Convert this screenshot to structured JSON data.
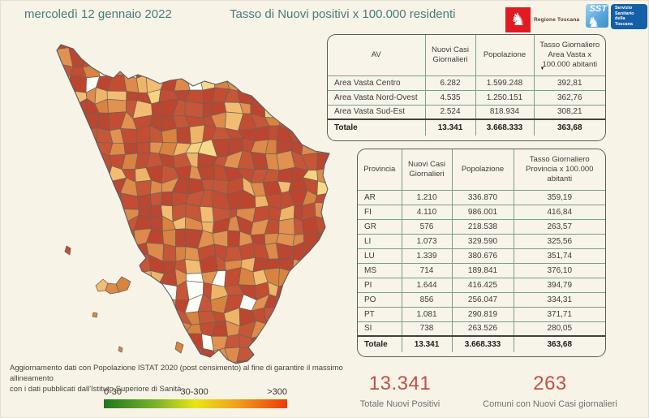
{
  "header": {
    "date": "mercoledì 12 gennaio 2022",
    "title": "Tasso di Nuovi positivi x 100.000 residenti"
  },
  "logos": {
    "regione": {
      "label": "Regione Toscana"
    },
    "sst": {
      "acronym": "SST",
      "lines": [
        "Servizio",
        "Sanitario",
        "della",
        "Toscana"
      ]
    }
  },
  "av_table": {
    "headers": [
      "AV",
      "Nuovi Casi Giornalieri",
      "Popolazione",
      "Tasso Giornaliero Area Vasta x 100.000 abitanti"
    ],
    "rows": [
      {
        "name": "Area Vasta Centro",
        "cases": "6.282",
        "population": "1.599.248",
        "rate": "392,81"
      },
      {
        "name": "Area Vasta Nord-Ovest",
        "cases": "4.535",
        "population": "1.250.151",
        "rate": "362,76"
      },
      {
        "name": "Area Vasta Sud-Est",
        "cases": "2.524",
        "population": "818.934",
        "rate": "308,21"
      }
    ],
    "total": {
      "name": "Totale",
      "cases": "13.341",
      "population": "3.668.333",
      "rate": "363,68"
    }
  },
  "province_table": {
    "headers": [
      "Provincia",
      "Nuovi Casi Giornalieri",
      "Popolazione",
      "Tasso Giornaliero Provincia x 100.000 abitanti"
    ],
    "rows": [
      {
        "name": "AR",
        "cases": "1.210",
        "population": "336.870",
        "rate": "359,19"
      },
      {
        "name": "FI",
        "cases": "4.110",
        "population": "986.001",
        "rate": "416,84"
      },
      {
        "name": "GR",
        "cases": "576",
        "population": "218.538",
        "rate": "263,57"
      },
      {
        "name": "LI",
        "cases": "1.073",
        "population": "329.590",
        "rate": "325,56"
      },
      {
        "name": "LU",
        "cases": "1.339",
        "population": "380.676",
        "rate": "351,74"
      },
      {
        "name": "MS",
        "cases": "714",
        "population": "189.841",
        "rate": "376,10"
      },
      {
        "name": "PI",
        "cases": "1.644",
        "population": "416.425",
        "rate": "394,79"
      },
      {
        "name": "PO",
        "cases": "856",
        "population": "256.047",
        "rate": "334,31"
      },
      {
        "name": "PT",
        "cases": "1.081",
        "population": "290.819",
        "rate": "371,71"
      },
      {
        "name": "SI",
        "cases": "738",
        "population": "263.526",
        "rate": "280,05"
      }
    ],
    "total": {
      "name": "Totale",
      "cases": "13.341",
      "population": "3.668.333",
      "rate": "363,68"
    }
  },
  "footnote": {
    "line1": "Aggiornamento dati con Popolazione ISTAT 2020 (post censimento) al fine di garantire il massimo allineamento",
    "line2": "con i dati pubblicati dall'Istituto Superiore di Sanità"
  },
  "legend": {
    "labels": [
      "0-30",
      "30-300",
      ">300"
    ],
    "gradient": [
      "#1e781e",
      "#79b22a",
      "#e9e615",
      "#f2a11b",
      "#ec3c05"
    ]
  },
  "kpis": [
    {
      "value": "13.341",
      "label": "Totale Nuovi Positivi"
    },
    {
      "value": "263",
      "label": "Comuni con Nuovi Casi giornalieri"
    }
  ],
  "map": {
    "region": "Toscana",
    "palette": {
      "dark_red": [
        "#c24d33",
        "#bd4530",
        "#c65638",
        "#b94731"
      ],
      "orange": [
        "#dd8a4a",
        "#d98340",
        "#e19150"
      ],
      "light": [
        "#eeb468",
        "#f2bd72"
      ],
      "pale": [
        "#f7d98c",
        "#f4d47f"
      ],
      "white": "#fdfdf8",
      "border": "#6a6257"
    }
  },
  "colors": {
    "accent_teal": "#477c7c",
    "kpi_red": "#c0504a",
    "table_line": "#76a08f",
    "background": "#f7f3e7"
  }
}
